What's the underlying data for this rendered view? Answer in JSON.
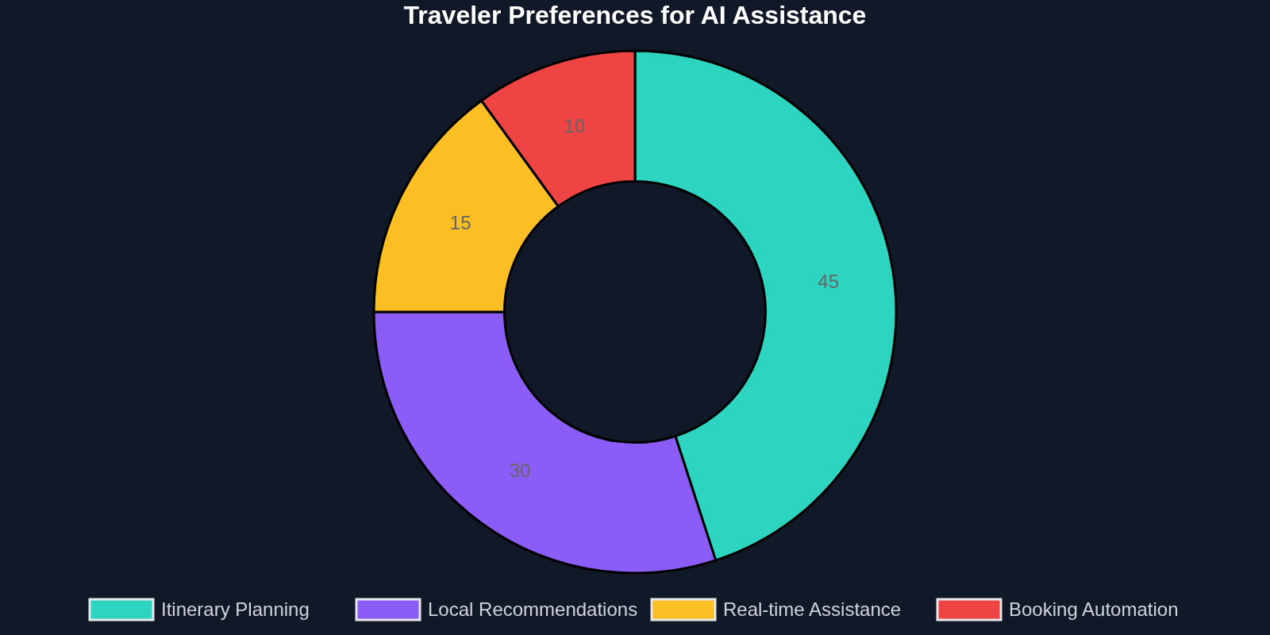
{
  "chart_data": {
    "type": "donut",
    "title": "Traveler Preferences for AI Assistance",
    "categories": [
      "Itinerary Planning",
      "Local Recommendations",
      "Real-time Assistance",
      "Booking Automation"
    ],
    "values": [
      45,
      30,
      15,
      10
    ],
    "colors": [
      "#2dd4bf",
      "#8b5cf6",
      "#fbbf24",
      "#ef4444"
    ],
    "data_labels": true,
    "legend": "bottom"
  }
}
